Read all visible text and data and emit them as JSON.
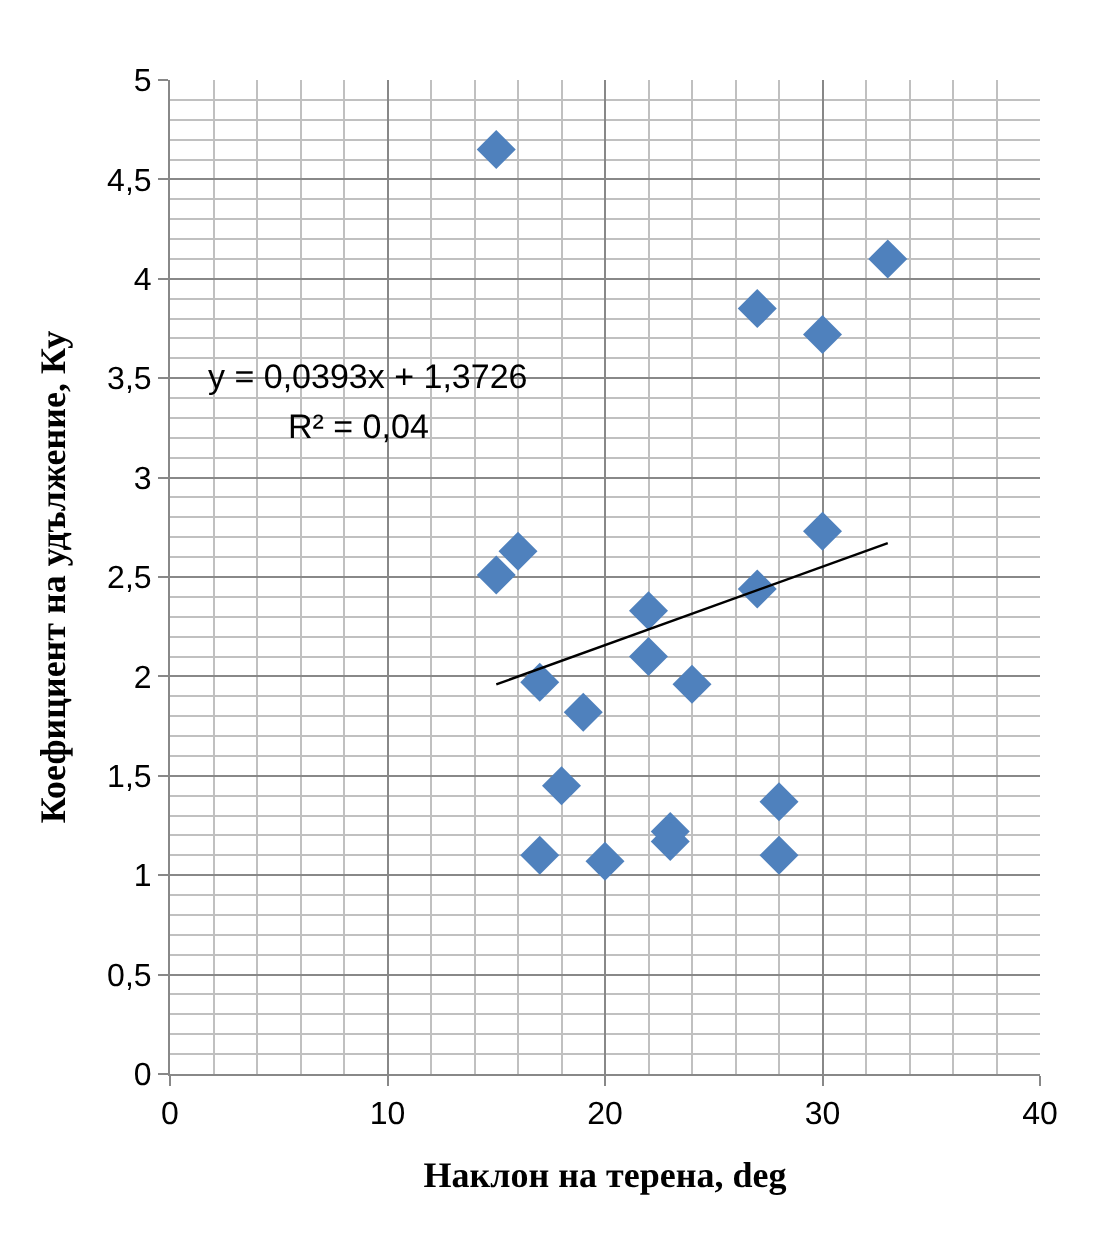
{
  "chart_data": {
    "type": "scatter",
    "xlabel": "Наклон на терена, deg",
    "ylabel": "Коефициент на удължение, Ку",
    "x": [
      15,
      33,
      27,
      30,
      30,
      15,
      16,
      27,
      22,
      22,
      24,
      17,
      19,
      18,
      28,
      17,
      20,
      23,
      23,
      28
    ],
    "series": [
      {
        "color": "#4f81bd",
        "marker": "diamond",
        "values": [
          4.65,
          4.1,
          3.85,
          3.72,
          2.73,
          2.51,
          2.63,
          2.44,
          2.33,
          2.1,
          1.96,
          1.97,
          1.82,
          1.45,
          1.37,
          1.1,
          1.07,
          1.22,
          1.17,
          1.1
        ]
      },
      {
        "type": "line",
        "color": "#000000",
        "marker": "none",
        "x": [
          15,
          33
        ],
        "values": [
          1.96,
          2.67
        ]
      }
    ],
    "annotations": [
      "y = 0,0393x + 1,3726",
      "R² = 0,04"
    ],
    "xlim": [
      0,
      40
    ],
    "xticks": [
      0,
      10,
      20,
      30,
      40
    ],
    "ylim": [
      0,
      5
    ],
    "yticks": [
      0,
      {
        "value": 0.5,
        "label": "0,5"
      },
      1,
      {
        "value": 1.5,
        "label": "1,5"
      },
      2,
      {
        "value": 2.5,
        "label": "2,5"
      },
      3,
      {
        "value": 3.5,
        "label": "3,5"
      },
      4,
      {
        "value": 4.5,
        "label": "4,5"
      },
      5
    ],
    "grid": true
  }
}
